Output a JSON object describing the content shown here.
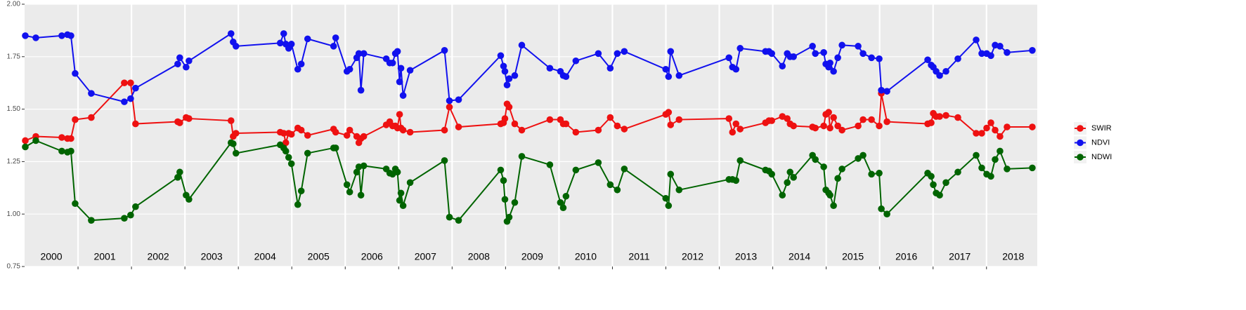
{
  "chart_data": {
    "type": "line",
    "x": [
      2000.013,
      2000.21,
      2000.696,
      2000.802,
      2000.867,
      2000.946,
      2001.248,
      2001.866,
      2001.984,
      2002.076,
      2002.865,
      2002.904,
      2003.022,
      2003.075,
      2003.863,
      2003.903,
      2003.955,
      2004.783,
      2004.849,
      2004.888,
      2004.941,
      2004.993,
      2005.112,
      2005.177,
      2005.296,
      2005.782,
      2005.821,
      2006.032,
      2006.084,
      2006.215,
      2006.255,
      2006.294,
      2006.347,
      2006.767,
      2006.833,
      2006.886,
      2006.938,
      2006.978,
      2007.017,
      2007.043,
      2007.083,
      2007.214,
      2007.858,
      2007.95,
      2008.121,
      2008.909,
      2008.962,
      2008.988,
      2009.028,
      2009.067,
      2009.172,
      2009.304,
      2009.829,
      2010.026,
      2010.079,
      2010.131,
      2010.315,
      2010.736,
      2010.959,
      2011.091,
      2011.222,
      2011.997,
      2012.05,
      2012.089,
      2012.247,
      2013.18,
      2013.246,
      2013.312,
      2013.39,
      2013.864,
      2013.929,
      2013.982,
      2014.18,
      2014.271,
      2014.324,
      2014.389,
      2014.744,
      2014.797,
      2014.954,
      2014.993,
      2015.046,
      2015.072,
      2015.138,
      2015.217,
      2015.296,
      2015.598,
      2015.69,
      2015.848,
      2015.992,
      2016.032,
      2016.137,
      2016.899,
      2016.965,
      2017.004,
      2017.057,
      2017.123,
      2017.241,
      2017.464,
      2017.806,
      2017.911,
      2018.003,
      2018.082,
      2018.161,
      2018.252,
      2018.384,
      2018.857
    ],
    "series": [
      {
        "name": "SWIR",
        "color": "#ee1111",
        "values": [
          1.35,
          1.37,
          1.365,
          1.36,
          1.36,
          1.45,
          1.46,
          1.625,
          1.625,
          1.43,
          1.44,
          1.435,
          1.46,
          1.455,
          1.445,
          1.37,
          1.385,
          1.39,
          1.385,
          1.34,
          1.385,
          1.38,
          1.41,
          1.4,
          1.375,
          1.405,
          1.39,
          1.375,
          1.4,
          1.37,
          1.34,
          1.36,
          1.37,
          1.425,
          1.44,
          1.42,
          1.42,
          1.41,
          1.475,
          1.41,
          1.4,
          1.39,
          1.4,
          1.51,
          1.415,
          1.43,
          1.435,
          1.455,
          1.525,
          1.51,
          1.43,
          1.4,
          1.45,
          1.45,
          1.43,
          1.43,
          1.39,
          1.4,
          1.46,
          1.42,
          1.405,
          1.475,
          1.485,
          1.425,
          1.45,
          1.455,
          1.39,
          1.43,
          1.405,
          1.435,
          1.445,
          1.445,
          1.465,
          1.455,
          1.43,
          1.42,
          1.415,
          1.41,
          1.42,
          1.475,
          1.485,
          1.41,
          1.46,
          1.42,
          1.4,
          1.42,
          1.45,
          1.45,
          1.42,
          1.575,
          1.44,
          1.43,
          1.435,
          1.48,
          1.465,
          1.465,
          1.47,
          1.46,
          1.385,
          1.385,
          1.41,
          1.435,
          1.4,
          1.37,
          1.415,
          1.415
        ]
      },
      {
        "name": "NDVI",
        "color": "#1111ee",
        "values": [
          1.85,
          1.84,
          1.85,
          1.855,
          1.85,
          1.67,
          1.575,
          1.535,
          1.55,
          1.6,
          1.715,
          1.745,
          1.7,
          1.73,
          1.86,
          1.82,
          1.8,
          1.815,
          1.86,
          1.81,
          1.79,
          1.81,
          1.69,
          1.715,
          1.835,
          1.8,
          1.84,
          1.68,
          1.69,
          1.745,
          1.765,
          1.59,
          1.765,
          1.74,
          1.72,
          1.72,
          1.765,
          1.775,
          1.63,
          1.695,
          1.565,
          1.685,
          1.78,
          1.54,
          1.545,
          1.755,
          1.705,
          1.68,
          1.615,
          1.645,
          1.66,
          1.805,
          1.695,
          1.68,
          1.66,
          1.655,
          1.73,
          1.765,
          1.695,
          1.765,
          1.775,
          1.69,
          1.655,
          1.775,
          1.66,
          1.745,
          1.7,
          1.69,
          1.79,
          1.775,
          1.775,
          1.765,
          1.705,
          1.765,
          1.75,
          1.75,
          1.8,
          1.765,
          1.77,
          1.715,
          1.7,
          1.72,
          1.68,
          1.745,
          1.805,
          1.8,
          1.765,
          1.745,
          1.74,
          1.59,
          1.585,
          1.735,
          1.71,
          1.7,
          1.68,
          1.66,
          1.68,
          1.74,
          1.83,
          1.765,
          1.765,
          1.755,
          1.805,
          1.8,
          1.77,
          1.78
        ]
      },
      {
        "name": "NDWI",
        "color": "#006400",
        "values": [
          1.32,
          1.35,
          1.3,
          1.295,
          1.3,
          1.05,
          0.97,
          0.98,
          0.995,
          1.035,
          1.175,
          1.2,
          1.09,
          1.07,
          1.34,
          1.335,
          1.29,
          1.33,
          1.315,
          1.3,
          1.27,
          1.24,
          1.045,
          1.11,
          1.29,
          1.315,
          1.315,
          1.14,
          1.105,
          1.2,
          1.225,
          1.09,
          1.23,
          1.215,
          1.195,
          1.19,
          1.215,
          1.2,
          1.065,
          1.1,
          1.04,
          1.15,
          1.255,
          0.985,
          0.97,
          1.21,
          1.16,
          1.07,
          0.965,
          0.985,
          1.055,
          1.275,
          1.235,
          1.055,
          1.03,
          1.085,
          1.21,
          1.245,
          1.14,
          1.115,
          1.215,
          1.075,
          1.04,
          1.19,
          1.115,
          1.165,
          1.165,
          1.16,
          1.255,
          1.21,
          1.205,
          1.19,
          1.09,
          1.15,
          1.2,
          1.175,
          1.28,
          1.26,
          1.225,
          1.115,
          1.1,
          1.09,
          1.04,
          1.17,
          1.215,
          1.265,
          1.28,
          1.19,
          1.195,
          1.025,
          1.0,
          1.195,
          1.18,
          1.14,
          1.1,
          1.09,
          1.15,
          1.2,
          1.28,
          1.22,
          1.19,
          1.18,
          1.26,
          1.3,
          1.215,
          1.22
        ]
      }
    ],
    "xlim": [
      2000,
      2018.95
    ],
    "xticks": [
      2001,
      2002,
      2003,
      2004,
      2005,
      2006,
      2007,
      2008,
      2009,
      2010,
      2011,
      2012,
      2013,
      2014,
      2015,
      2016,
      2017,
      2018
    ],
    "year_labels": [
      {
        "value": 2000.5,
        "label": "2000"
      },
      {
        "value": 2001.5,
        "label": "2001"
      },
      {
        "value": 2002.5,
        "label": "2002"
      },
      {
        "value": 2003.5,
        "label": "2003"
      },
      {
        "value": 2004.5,
        "label": "2004"
      },
      {
        "value": 2005.5,
        "label": "2005"
      },
      {
        "value": 2006.5,
        "label": "2006"
      },
      {
        "value": 2007.5,
        "label": "2007"
      },
      {
        "value": 2008.5,
        "label": "2008"
      },
      {
        "value": 2009.5,
        "label": "2009"
      },
      {
        "value": 2010.5,
        "label": "2010"
      },
      {
        "value": 2011.5,
        "label": "2011"
      },
      {
        "value": 2012.5,
        "label": "2012"
      },
      {
        "value": 2013.5,
        "label": "2013"
      },
      {
        "value": 2014.5,
        "label": "2014"
      },
      {
        "value": 2015.5,
        "label": "2015"
      },
      {
        "value": 2016.5,
        "label": "2016"
      },
      {
        "value": 2017.5,
        "label": "2017"
      },
      {
        "value": 2018.5,
        "label": "2018"
      }
    ],
    "ylim": [
      0.75,
      2.0
    ],
    "yticks": [
      0.75,
      {
        "value": 1.0,
        "label": "1.00"
      },
      1.25,
      {
        "value": 1.5,
        "label": "1.50"
      },
      {
        "value": 1.75,
        "label": "1.75"
      },
      {
        "value": 2.0,
        "label": "2.00"
      }
    ],
    "grid": true,
    "legend": "right"
  }
}
